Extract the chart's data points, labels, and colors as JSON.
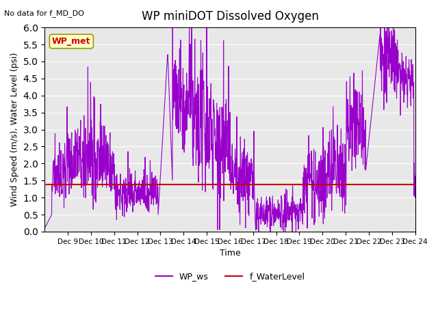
{
  "title": "WP miniDOT Dissolved Oxygen",
  "top_left_text": "No data for f_MD_DO",
  "ylabel": "Wind Speed (m/s), Water Level (psi)",
  "xlabel": "Time",
  "ylim": [
    0.0,
    6.0
  ],
  "yticks": [
    0.0,
    0.5,
    1.0,
    1.5,
    2.0,
    2.5,
    3.0,
    3.5,
    4.0,
    4.5,
    5.0,
    5.5,
    6.0
  ],
  "bg_color": "#e8e8e8",
  "wp_ws_color": "#9900cc",
  "f_wl_color": "#cc0000",
  "f_wl_value": 1.38,
  "legend_ws_label": "WP_ws",
  "legend_wl_label": "f_WaterLevel",
  "box_label": "WP_met",
  "box_facecolor": "#ffffcc",
  "box_edgecolor": "#999900",
  "box_textcolor": "#cc0000",
  "xtick_labels": [
    "Dec 9",
    "Dec 10",
    "Dec 11",
    "Dec 12",
    "Dec 13",
    "Dec 14",
    "Dec 15",
    "Dec 16",
    "Dec 17",
    "Dec 18",
    "Dec 19",
    "Dec 20",
    "Dec 21",
    "Dec 22",
    "Dec 23",
    "Dec 24"
  ],
  "xtick_positions": [
    1,
    2,
    3,
    4,
    5,
    6,
    7,
    8,
    9,
    10,
    11,
    12,
    13,
    14,
    15,
    16
  ],
  "xlim": [
    0,
    16
  ],
  "seed": 42
}
